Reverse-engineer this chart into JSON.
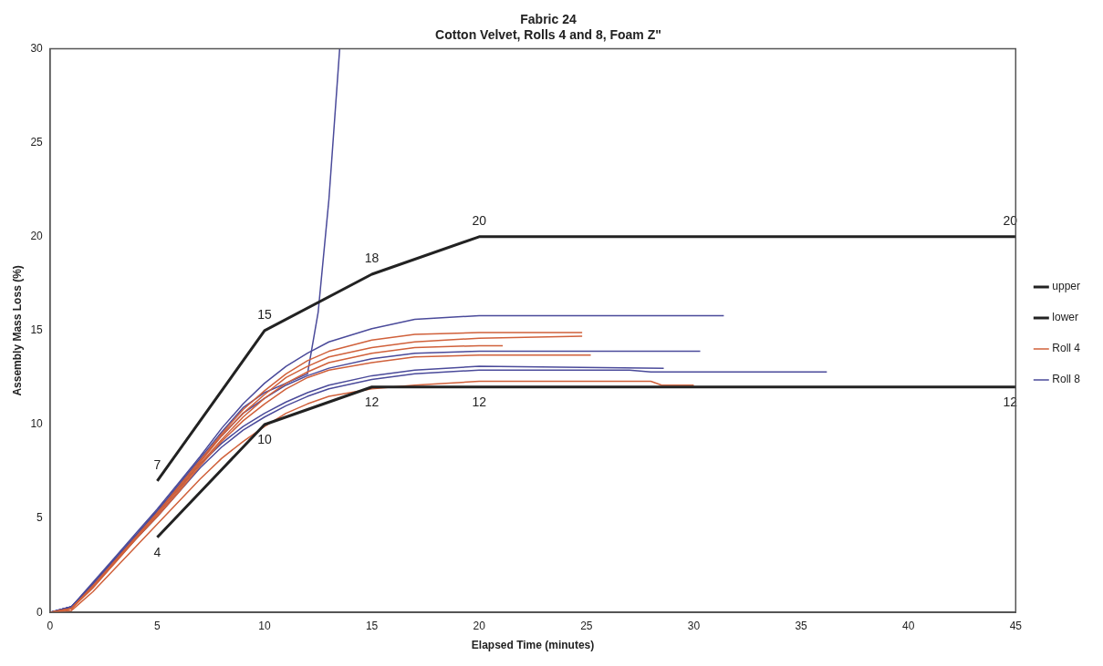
{
  "chart_data": {
    "type": "line",
    "title": "Fabric 24",
    "subtitle": "Cotton Velvet, Rolls 4 and 8, Foam Z\"",
    "xlabel": "Elapsed Time (minutes)",
    "ylabel": "Assembly Mass Loss (%)",
    "xlim": [
      0,
      45
    ],
    "xticks": [
      0,
      5,
      10,
      15,
      20,
      25,
      30,
      35,
      40,
      45
    ],
    "ylim": [
      0,
      30
    ],
    "yticks": [
      0,
      5,
      10,
      15,
      20,
      25,
      30
    ],
    "grid": false,
    "legend": "right",
    "marker": "none",
    "line_style": "solid",
    "series": [
      {
        "name": "upper",
        "color": "#222222",
        "x": [
          5,
          10,
          15,
          20,
          45
        ],
        "values": [
          7,
          15,
          18,
          20,
          20
        ],
        "value_labels": [
          "7",
          "15",
          "18",
          "20",
          "20"
        ]
      },
      {
        "name": "lower",
        "color": "#222222",
        "x": [
          5,
          10,
          15,
          20,
          45
        ],
        "values": [
          4,
          10,
          12,
          12,
          12
        ],
        "value_labels": [
          "4",
          "10",
          "12",
          "12",
          "12"
        ]
      },
      {
        "name": "Roll 4",
        "color": "#d0603a",
        "x": [
          0,
          1,
          2,
          3,
          4,
          5,
          6,
          7,
          8,
          9,
          10,
          11,
          12,
          13,
          15,
          17,
          20,
          24.8
        ],
        "values": [
          0,
          0.2,
          1.4,
          2.7,
          4.0,
          5.3,
          6.7,
          8.1,
          9.5,
          10.8,
          11.8,
          12.7,
          13.4,
          13.9,
          14.5,
          14.8,
          14.9,
          14.9
        ]
      },
      {
        "color": "#d0603a",
        "x": [
          0,
          1,
          2,
          3,
          4,
          5,
          6,
          7,
          8,
          9,
          10,
          11,
          12,
          13,
          15,
          17,
          20,
          24.8
        ],
        "values": [
          0,
          0.2,
          1.4,
          2.7,
          4.0,
          5.3,
          6.6,
          8.0,
          9.4,
          10.6,
          11.6,
          12.5,
          13.1,
          13.6,
          14.1,
          14.4,
          14.6,
          14.7
        ]
      },
      {
        "color": "#d0603a",
        "x": [
          0,
          1,
          2,
          3,
          4,
          5,
          6,
          7,
          8,
          9,
          10,
          11,
          12,
          13,
          15,
          17,
          20,
          21.1
        ],
        "values": [
          0,
          0.2,
          1.4,
          2.6,
          3.9,
          5.2,
          6.5,
          7.9,
          9.2,
          10.4,
          11.4,
          12.2,
          12.8,
          13.3,
          13.8,
          14.1,
          14.2,
          14.2
        ]
      },
      {
        "color": "#d0603a",
        "x": [
          0,
          1,
          2,
          3,
          4,
          5,
          6,
          7,
          8,
          9,
          10,
          11,
          12,
          13,
          15,
          17,
          20,
          25.2
        ],
        "values": [
          0,
          0.2,
          1.3,
          2.6,
          3.9,
          5.1,
          6.4,
          7.8,
          9.1,
          10.2,
          11.1,
          11.9,
          12.5,
          12.9,
          13.3,
          13.6,
          13.7,
          13.7
        ]
      },
      {
        "color": "#d0603a",
        "x": [
          0,
          1,
          2,
          3,
          4,
          5,
          6,
          7,
          8,
          9,
          10,
          11,
          12,
          13,
          15,
          17,
          20,
          28,
          28.5,
          30
        ],
        "values": [
          0,
          0.1,
          1.1,
          2.3,
          3.5,
          4.7,
          5.9,
          7.1,
          8.2,
          9.1,
          9.9,
          10.6,
          11.1,
          11.5,
          11.9,
          12.1,
          12.3,
          12.3,
          12.1,
          12.1
        ]
      },
      {
        "name": "Roll 8",
        "color": "#4a4a9a",
        "x": [
          0,
          1,
          2,
          3,
          4,
          5,
          6,
          7,
          8,
          9,
          10,
          11,
          12,
          13,
          15,
          17,
          20,
          31.4
        ],
        "values": [
          0,
          0.3,
          1.6,
          2.9,
          4.2,
          5.5,
          6.9,
          8.3,
          9.8,
          11.1,
          12.2,
          13.1,
          13.8,
          14.4,
          15.1,
          15.6,
          15.8,
          15.8
        ]
      },
      {
        "color": "#4a4a9a",
        "x": [
          0,
          1,
          2,
          3,
          4,
          5,
          6,
          7,
          8,
          9,
          10,
          11,
          12,
          13,
          15,
          17,
          20,
          30.3
        ],
        "values": [
          0,
          0.3,
          1.5,
          2.8,
          4.1,
          5.4,
          6.7,
          8.1,
          9.4,
          10.6,
          11.4,
          12.1,
          12.6,
          13.0,
          13.5,
          13.8,
          13.9,
          13.9
        ]
      },
      {
        "color": "#4a4a9a",
        "x": [
          0,
          1,
          2,
          3,
          4,
          5,
          6,
          7,
          8,
          9,
          10,
          11,
          12,
          13,
          15,
          17,
          20,
          28.6
        ],
        "values": [
          0,
          0.3,
          1.5,
          2.8,
          4.0,
          5.3,
          6.6,
          7.9,
          9.0,
          9.9,
          10.6,
          11.2,
          11.7,
          12.1,
          12.6,
          12.9,
          13.1,
          13.0
        ]
      },
      {
        "color": "#4a4a9a",
        "x": [
          0,
          1,
          2,
          3,
          4,
          5,
          6,
          7,
          8,
          9,
          10,
          11,
          12,
          13,
          15,
          17,
          20,
          27,
          28,
          36.2
        ],
        "values": [
          0,
          0.3,
          1.4,
          2.7,
          3.9,
          5.1,
          6.4,
          7.7,
          8.8,
          9.7,
          10.4,
          11.0,
          11.5,
          11.9,
          12.4,
          12.7,
          12.9,
          12.9,
          12.8,
          12.8
        ]
      },
      {
        "color": "#4a4a9a",
        "x": [
          0,
          1,
          2,
          3,
          4,
          5,
          6,
          7,
          8,
          9,
          10,
          11,
          12,
          12.5,
          13,
          13.5
        ],
        "values": [
          0,
          0.3,
          1.5,
          2.8,
          4.1,
          5.4,
          6.8,
          8.2,
          9.6,
          10.9,
          11.7,
          12.2,
          12.7,
          16,
          22,
          30
        ]
      }
    ]
  }
}
